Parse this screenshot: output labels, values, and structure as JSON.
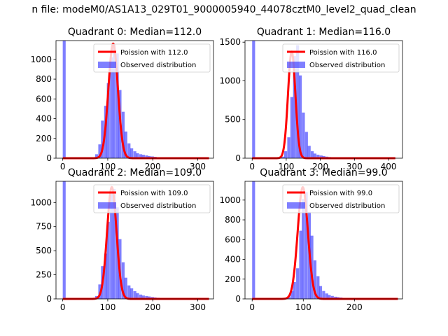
{
  "figure": {
    "suptitle": "n file: modeM0/AS1A13_029T01_9000005940_44078cztM0_level2_quad_clean"
  },
  "chart_data": [
    {
      "type": "bar",
      "title": "Quadrant 0: Median=112.0",
      "xlim": [
        -15,
        335
      ],
      "ylim": [
        0,
        1190
      ],
      "xticks": [
        0,
        100,
        200,
        300
      ],
      "yticks": [
        0,
        200,
        400,
        600,
        800,
        1000
      ],
      "legend_position": "upper right",
      "legend": {
        "line": "Poission with 112.0",
        "hist": "Observed distribution"
      },
      "bin_width": 6.5,
      "bins": [
        [
          0,
          1190
        ],
        [
          60,
          5
        ],
        [
          66,
          10
        ],
        [
          72,
          40
        ],
        [
          79,
          140
        ],
        [
          85,
          380
        ],
        [
          92,
          530
        ],
        [
          98,
          760
        ],
        [
          105,
          1020
        ],
        [
          111,
          1150
        ],
        [
          118,
          1060
        ],
        [
          124,
          690
        ],
        [
          131,
          470
        ],
        [
          137,
          270
        ],
        [
          144,
          150
        ],
        [
          150,
          100
        ],
        [
          157,
          70
        ],
        [
          163,
          50
        ],
        [
          170,
          40
        ],
        [
          176,
          35
        ],
        [
          183,
          28
        ],
        [
          189,
          22
        ],
        [
          196,
          18
        ],
        [
          202,
          14
        ],
        [
          209,
          10
        ],
        [
          215,
          8
        ],
        [
          222,
          6
        ],
        [
          228,
          5
        ],
        [
          235,
          4
        ],
        [
          241,
          3
        ],
        [
          248,
          2
        ],
        [
          254,
          2
        ],
        [
          261,
          1
        ],
        [
          280,
          1
        ],
        [
          300,
          1
        ],
        [
          320,
          1
        ]
      ],
      "poisson": {
        "mean": 112.0,
        "peak": 1160,
        "x_range": [
          0,
          325
        ]
      }
    },
    {
      "type": "bar",
      "title": "Quadrant 1: Median=116.0",
      "xlim": [
        -21,
        441
      ],
      "ylim": [
        0,
        1520
      ],
      "xticks": [
        0,
        100,
        200,
        300,
        400
      ],
      "yticks": [
        0,
        500,
        1000,
        1500
      ],
      "legend_position": "upper right",
      "legend": {
        "line": "Poission with 116.0",
        "hist": "Observed distribution"
      },
      "bin_width": 8.6,
      "bins": [
        [
          0,
          1520
        ],
        [
          78,
          5
        ],
        [
          86,
          20
        ],
        [
          94,
          90
        ],
        [
          103,
          270
        ],
        [
          112,
          790
        ],
        [
          120,
          1320
        ],
        [
          129,
          1460
        ],
        [
          137,
          1070
        ],
        [
          146,
          590
        ],
        [
          155,
          340
        ],
        [
          163,
          160
        ],
        [
          172,
          90
        ],
        [
          180,
          60
        ],
        [
          189,
          45
        ],
        [
          198,
          35
        ],
        [
          206,
          28
        ],
        [
          215,
          20
        ],
        [
          223,
          15
        ],
        [
          232,
          12
        ],
        [
          241,
          9
        ],
        [
          249,
          7
        ],
        [
          258,
          5
        ],
        [
          266,
          4
        ],
        [
          275,
          3
        ],
        [
          284,
          2
        ],
        [
          300,
          2
        ],
        [
          330,
          1
        ],
        [
          360,
          1
        ],
        [
          400,
          1
        ]
      ],
      "poisson": {
        "mean": 116.0,
        "peak": 1380,
        "x_range": [
          0,
          420
        ]
      }
    },
    {
      "type": "bar",
      "title": "Quadrant 2: Median=109.0",
      "xlim": [
        -15,
        335
      ],
      "ylim": [
        0,
        1220
      ],
      "xticks": [
        0,
        100,
        200,
        300
      ],
      "yticks": [
        0,
        250,
        500,
        750,
        1000
      ],
      "legend_position": "upper right",
      "legend": {
        "line": "Poission with 109.0",
        "hist": "Observed distribution"
      },
      "bin_width": 6.5,
      "bins": [
        [
          0,
          1220
        ],
        [
          60,
          5
        ],
        [
          66,
          12
        ],
        [
          72,
          30
        ],
        [
          79,
          150
        ],
        [
          85,
          340
        ],
        [
          92,
          470
        ],
        [
          98,
          800
        ],
        [
          105,
          1100
        ],
        [
          111,
          1140
        ],
        [
          118,
          950
        ],
        [
          124,
          620
        ],
        [
          131,
          380
        ],
        [
          137,
          220
        ],
        [
          144,
          140
        ],
        [
          150,
          110
        ],
        [
          157,
          80
        ],
        [
          163,
          60
        ],
        [
          170,
          45
        ],
        [
          176,
          35
        ],
        [
          183,
          30
        ],
        [
          189,
          25
        ],
        [
          196,
          20
        ],
        [
          202,
          15
        ],
        [
          209,
          12
        ],
        [
          215,
          10
        ],
        [
          222,
          8
        ],
        [
          228,
          6
        ],
        [
          235,
          5
        ],
        [
          241,
          4
        ],
        [
          248,
          3
        ],
        [
          254,
          2
        ],
        [
          261,
          2
        ],
        [
          280,
          1
        ],
        [
          300,
          1
        ],
        [
          320,
          1
        ]
      ],
      "poisson": {
        "mean": 109.0,
        "peak": 1160,
        "x_range": [
          0,
          325
        ]
      }
    },
    {
      "type": "bar",
      "title": "Quadrant 3: Median=99.0",
      "xlim": [
        -14,
        294
      ],
      "ylim": [
        0,
        1190
      ],
      "xticks": [
        0,
        100,
        200
      ],
      "yticks": [
        0,
        200,
        400,
        600,
        800,
        1000
      ],
      "legend_position": "upper right",
      "legend": {
        "line": "Poission with 99.0",
        "hist": "Observed distribution"
      },
      "bin_width": 5.7,
      "bins": [
        [
          0,
          1190
        ],
        [
          28,
          5
        ],
        [
          40,
          5
        ],
        [
          52,
          6
        ],
        [
          63,
          10
        ],
        [
          69,
          20
        ],
        [
          75,
          80
        ],
        [
          80,
          170
        ],
        [
          86,
          310
        ],
        [
          92,
          690
        ],
        [
          97,
          1010
        ],
        [
          103,
          1080
        ],
        [
          109,
          880
        ],
        [
          114,
          640
        ],
        [
          120,
          390
        ],
        [
          126,
          230
        ],
        [
          131,
          130
        ],
        [
          137,
          80
        ],
        [
          143,
          55
        ],
        [
          148,
          40
        ],
        [
          154,
          30
        ],
        [
          160,
          22
        ],
        [
          165,
          18
        ],
        [
          171,
          14
        ],
        [
          177,
          10
        ],
        [
          182,
          8
        ],
        [
          188,
          6
        ],
        [
          194,
          5
        ],
        [
          200,
          4
        ],
        [
          210,
          3
        ],
        [
          222,
          2
        ],
        [
          240,
          1
        ],
        [
          260,
          1
        ],
        [
          280,
          1
        ]
      ],
      "poisson": {
        "mean": 99.0,
        "peak": 1130,
        "x_range": [
          0,
          285
        ]
      }
    }
  ]
}
